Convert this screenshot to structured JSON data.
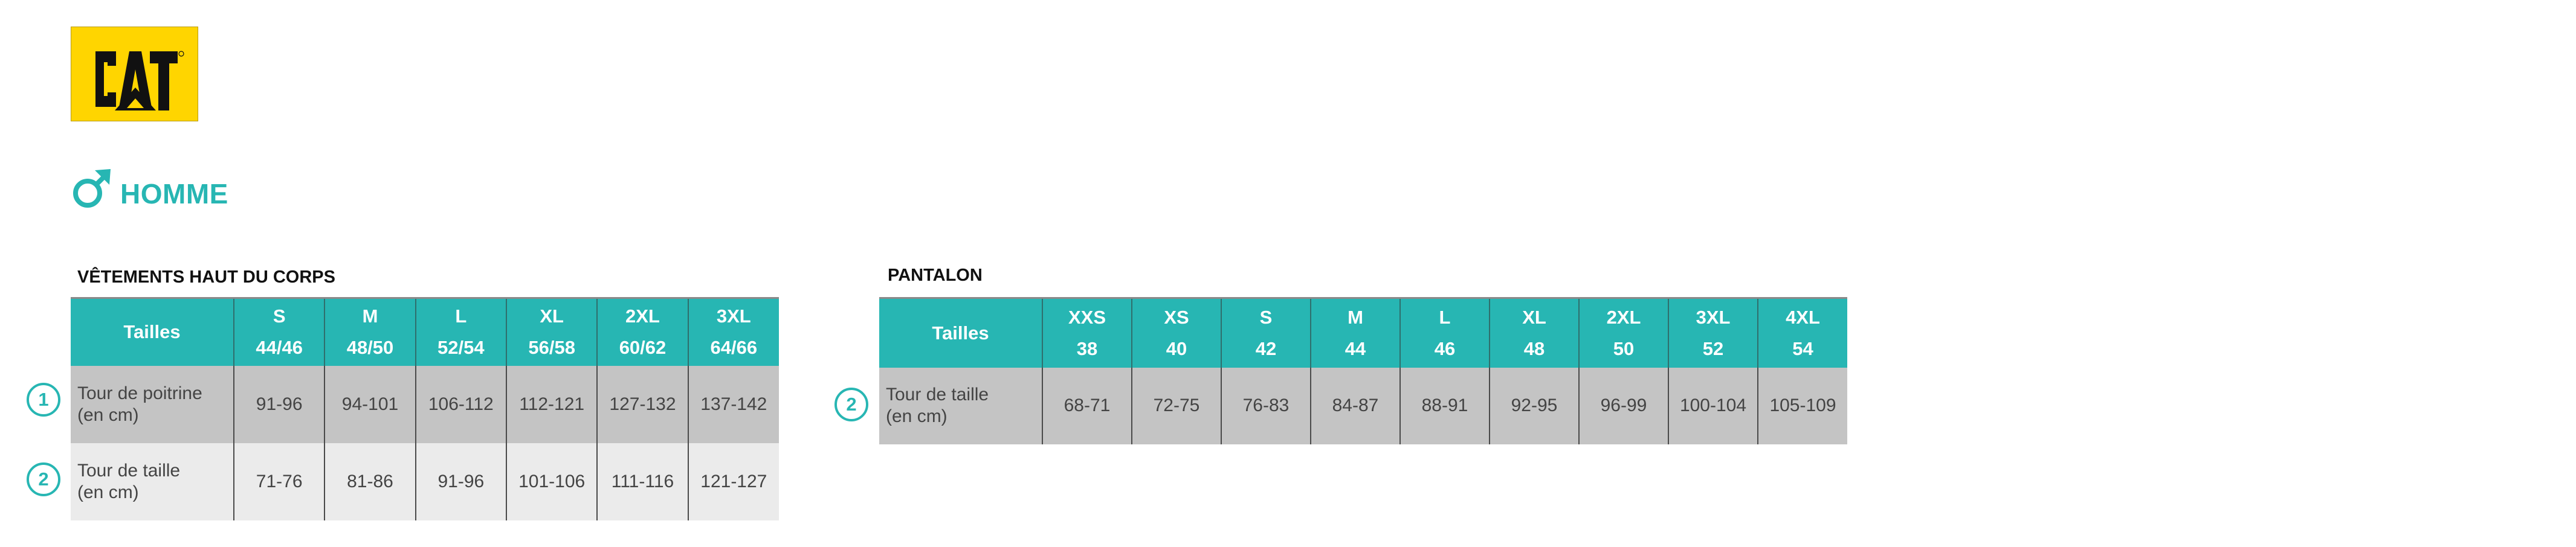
{
  "logo": {
    "text": "CAT",
    "color": "#ffd500"
  },
  "section": {
    "icon": "male-symbol-icon",
    "label": "HOMME",
    "accent": "#27b6b3"
  },
  "top_table": {
    "title": "VÊTEMENTS HAUT DU CORPS",
    "header_label": "Tailles",
    "sizes": [
      {
        "size": "S",
        "eu": "44/46"
      },
      {
        "size": "M",
        "eu": "48/50"
      },
      {
        "size": "L",
        "eu": "52/54"
      },
      {
        "size": "XL",
        "eu": "56/58"
      },
      {
        "size": "2XL",
        "eu": "60/62"
      },
      {
        "size": "3XL",
        "eu": "64/66"
      }
    ],
    "rows": [
      {
        "number": "1",
        "label_line1": "Tour de poitrine",
        "label_line2": "(en cm)",
        "values": [
          "91-96",
          "94-101",
          "106-112",
          "112-121",
          "127-132",
          "137-142"
        ]
      },
      {
        "number": "2",
        "label_line1": "Tour de taille",
        "label_line2": "(en cm)",
        "values": [
          "71-76",
          "81-86",
          "91-96",
          "101-106",
          "111-116",
          "121-127"
        ]
      }
    ]
  },
  "pants_table": {
    "title": "PANTALON",
    "header_label": "Tailles",
    "sizes": [
      {
        "size": "XXS",
        "eu": "38"
      },
      {
        "size": "XS",
        "eu": "40"
      },
      {
        "size": "S",
        "eu": "42"
      },
      {
        "size": "M",
        "eu": "44"
      },
      {
        "size": "L",
        "eu": "46"
      },
      {
        "size": "XL",
        "eu": "48"
      },
      {
        "size": "2XL",
        "eu": "50"
      },
      {
        "size": "3XL",
        "eu": "52"
      },
      {
        "size": "4XL",
        "eu": "54"
      }
    ],
    "rows": [
      {
        "number": "2",
        "label_line1": "Tour de taille",
        "label_line2": "(en cm)",
        "values": [
          "68-71",
          "72-75",
          "76-83",
          "84-87",
          "88-91",
          "92-95",
          "96-99",
          "100-104",
          "105-109"
        ]
      }
    ]
  }
}
